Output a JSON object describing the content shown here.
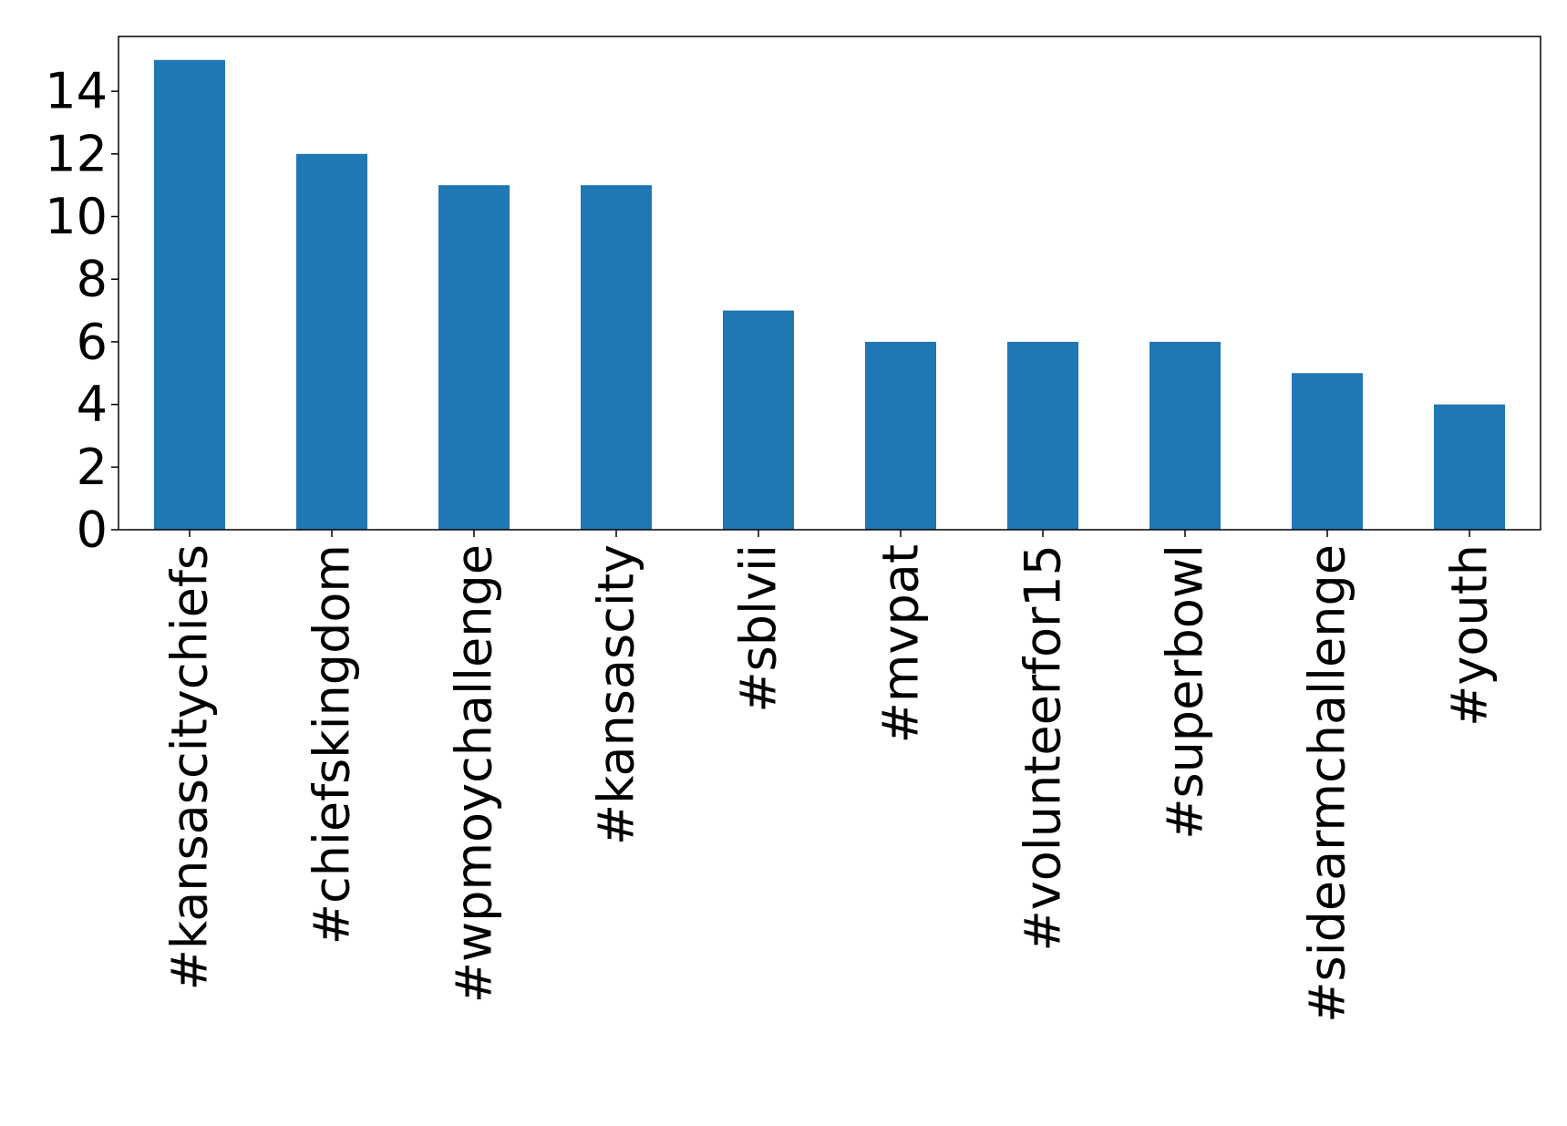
{
  "chart_data": {
    "type": "bar",
    "title": "",
    "xlabel": "",
    "ylabel": "",
    "categories": [
      "#kansascitychiefs",
      "#chiefskingdom",
      "#wpmoychallenge",
      "#kansascity",
      "#sblvii",
      "#mvpat",
      "#volunteerfor15",
      "#superbowl",
      "#sidearmchallenge",
      "#youth"
    ],
    "values": [
      15,
      12,
      11,
      11,
      7,
      6,
      6,
      6,
      5,
      4
    ],
    "ylim": [
      0,
      15.75
    ],
    "yticks": [
      0,
      2,
      4,
      6,
      8,
      10,
      12,
      14
    ],
    "ytick_labels": [
      "0",
      "2",
      "4",
      "6",
      "8",
      "10",
      "12",
      "14"
    ],
    "grid": false,
    "legend": "none",
    "bar_color": "#1f77b4",
    "axis_color": "#000000"
  }
}
